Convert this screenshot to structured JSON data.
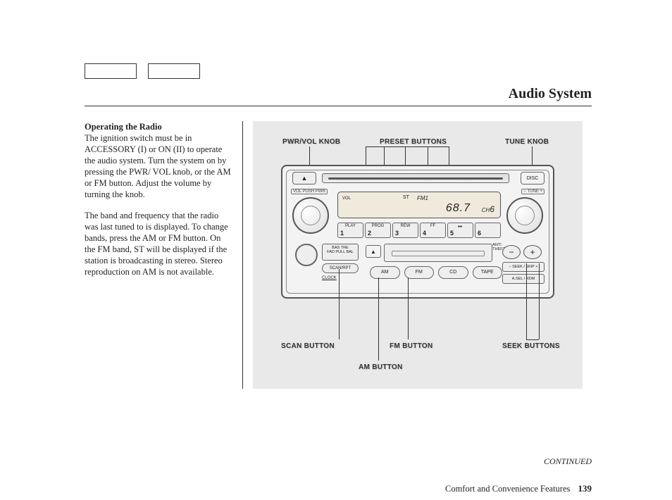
{
  "header": {
    "title": "Audio System"
  },
  "text": {
    "heading": "Operating the Radio",
    "p1": "The ignition switch must be in ACCESSORY (I) or ON (II) to operate the audio system. Turn the system on by pressing the PWR/ VOL knob, or the AM or FM button. Adjust the volume by turning the knob.",
    "p2": "The band and frequency that the radio was last tuned to is displayed. To change bands, press the AM or FM button. On the FM band, ST will be displayed if the station is broadcasting in stereo. Stereo reproduction on AM is not available."
  },
  "callouts": {
    "pwr_vol": "PWR/VOL KNOB",
    "preset": "PRESET BUTTONS",
    "tune": "TUNE KNOB",
    "scan": "SCAN BUTTON",
    "am": "AM BUTTON",
    "fm": "FM BUTTON",
    "seek": "SEEK BUTTONS"
  },
  "radio": {
    "vol_label": "VOL PUSH PWR",
    "tune_label": "− TUNE +",
    "disc": "DISC",
    "lcd": {
      "vol": "VOL",
      "st": "ST",
      "band": "FM1",
      "freq": "68.7",
      "ch_label": "CH",
      "ch": "6"
    },
    "presets": [
      {
        "t": "PLAY",
        "n": "1"
      },
      {
        "t": "PROG",
        "n": "2"
      },
      {
        "t": "REW",
        "n": "3"
      },
      {
        "t": "FF",
        "n": "4"
      },
      {
        "t": "▸▸",
        "n": "5"
      },
      {
        "t": "",
        "n": "6"
      }
    ],
    "eq": "BAS   TRE\nFAD PULL BAL",
    "scan": "SCAN/RPT",
    "clock": "CLOCK",
    "anti": "ANTI\nTHEFT",
    "modes": [
      "AM",
      "FM",
      "CD",
      "TAPE"
    ],
    "seek1": "− SEEK / SKIP +",
    "seek2": "A.SEL / RDM",
    "minus": "−",
    "plus": "+",
    "eject": "▲"
  },
  "continued": "CONTINUED",
  "footer": {
    "section": "Comfort and Convenience Features",
    "page": "139"
  }
}
